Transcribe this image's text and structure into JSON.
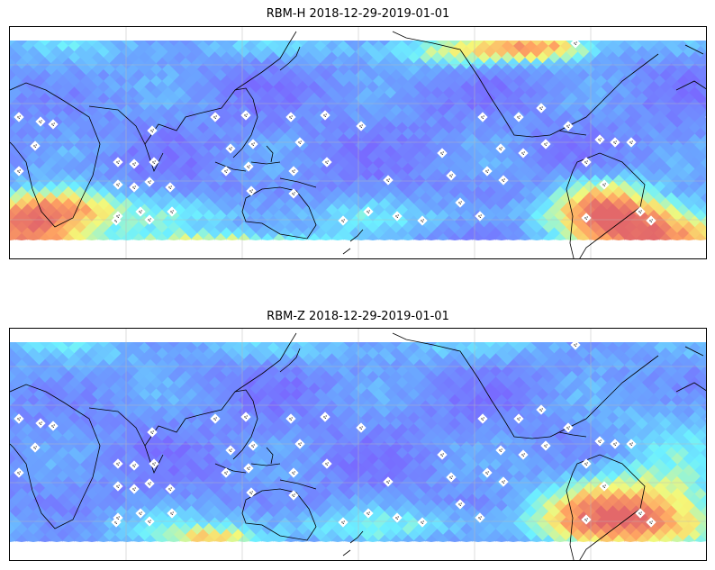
{
  "panels": [
    {
      "id": "rbm-h",
      "title": "RBM-H 2018-12-29-2019-01-01",
      "variant": "H"
    },
    {
      "id": "rbm-z",
      "title": "RBM-Z 2018-12-29-2019-01-01",
      "variant": "Z"
    }
  ],
  "projection": "equirectangular, centred on Pacific (~150°E)",
  "gridlines": true,
  "colormap": [
    "#6a5cff",
    "#5c9cff",
    "#5ef0ff",
    "#f4f86a",
    "#ff9a52",
    "#e0585a"
  ],
  "colormap_name": "jet-like, semi-transparent",
  "station_marker": "white-dot-cluster",
  "coastline_color": "#000000"
}
